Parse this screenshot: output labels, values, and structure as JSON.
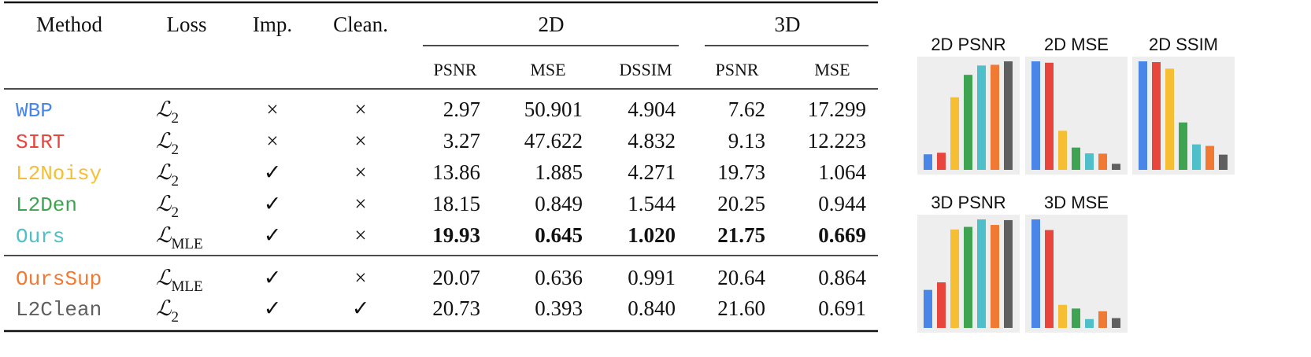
{
  "table": {
    "header": {
      "method": "Method",
      "loss": "Loss",
      "imp": "Imp.",
      "clean": "Clean.",
      "group_2d": "2D",
      "group_3d": "3D",
      "metrics": [
        "PSNR",
        "MSE",
        "DSSIM",
        "PSNR",
        "MSE"
      ]
    },
    "rows": [
      {
        "method": "WBP",
        "color": "#4a86e8",
        "loss": "ℒ",
        "loss_sub": "2",
        "imp": "×",
        "clean": "×",
        "values": [
          "2.97",
          "50.901",
          "4.904",
          "7.62",
          "17.299"
        ]
      },
      {
        "method": "SIRT",
        "color": "#e8453c",
        "loss": "ℒ",
        "loss_sub": "2",
        "imp": "×",
        "clean": "×",
        "values": [
          "3.27",
          "47.622",
          "4.832",
          "9.13",
          "12.223"
        ]
      },
      {
        "method": "L2Noisy",
        "color": "#f6bf33",
        "loss": "ℒ",
        "loss_sub": "2",
        "imp": "✓",
        "clean": "×",
        "values": [
          "13.86",
          "1.885",
          "4.271",
          "19.73",
          "1.064"
        ]
      },
      {
        "method": "L2Den",
        "color": "#3fa452",
        "loss": "ℒ",
        "loss_sub": "2",
        "imp": "✓",
        "clean": "×",
        "values": [
          "18.15",
          "0.849",
          "1.544",
          "20.25",
          "0.944"
        ]
      },
      {
        "method": "Ours",
        "color": "#4fc0c9",
        "loss": "ℒ",
        "loss_sub": "MLE",
        "imp": "✓",
        "clean": "×",
        "bold": true,
        "values": [
          "19.93",
          "0.645",
          "1.020",
          "21.75",
          "0.669"
        ]
      },
      {
        "method": "OursSup",
        "color": "#f07a34",
        "loss": "ℒ",
        "loss_sub": "MLE",
        "imp": "✓",
        "clean": "×",
        "values": [
          "20.07",
          "0.636",
          "0.991",
          "20.64",
          "0.864"
        ]
      },
      {
        "method": "L2Clean",
        "color": "#5f5f5f",
        "loss": "ℒ",
        "loss_sub": "2",
        "imp": "✓",
        "clean": "✓",
        "values": [
          "20.73",
          "0.393",
          "0.840",
          "21.60",
          "0.691"
        ]
      }
    ]
  },
  "charts": [
    {
      "title": "2D PSNR"
    },
    {
      "title": "2D MSE"
    },
    {
      "title": "2D SSIM"
    },
    {
      "title": "3D PSNR"
    },
    {
      "title": "3D MSE"
    }
  ]
}
